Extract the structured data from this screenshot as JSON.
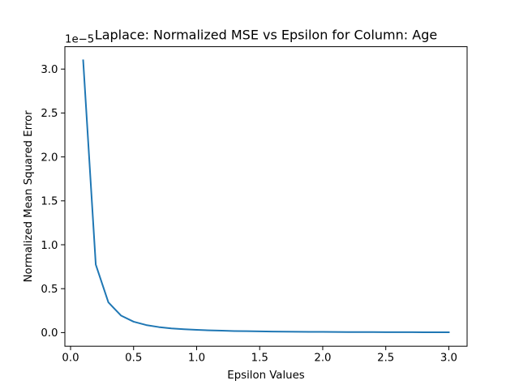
{
  "chart_data": {
    "type": "line",
    "title": "Laplace: Normalized MSE vs Epsilon for Column: Age",
    "xlabel": "Epsilon Values",
    "ylabel": "Normalized Mean Squared Error",
    "y_offset_label": "1e−5",
    "xlim": [
      -0.045,
      3.145
    ],
    "ylim": [
      -0.155,
      3.255
    ],
    "x_ticks": [
      0.0,
      0.5,
      1.0,
      1.5,
      2.0,
      2.5,
      3.0
    ],
    "x_tick_labels": [
      "0.0",
      "0.5",
      "1.0",
      "1.5",
      "2.0",
      "2.5",
      "3.0"
    ],
    "y_ticks": [
      0.0,
      0.5,
      1.0,
      1.5,
      2.0,
      2.5,
      3.0
    ],
    "y_tick_labels": [
      "0.0",
      "0.5",
      "1.0",
      "1.5",
      "2.0",
      "2.5",
      "3.0"
    ],
    "grid": false,
    "legend": false,
    "series": [
      {
        "color": "#1f77b4",
        "x": [
          0.1,
          0.2,
          0.3,
          0.4,
          0.5,
          0.6,
          0.7,
          0.8,
          0.9,
          1.0,
          1.1,
          1.2,
          1.3,
          1.4,
          1.5,
          1.6,
          1.7,
          1.8,
          1.9,
          2.0,
          2.1,
          2.2,
          2.3,
          2.4,
          2.5,
          2.6,
          2.7,
          2.8,
          2.9,
          3.0
        ],
        "y": [
          3.1,
          0.775,
          0.344,
          0.194,
          0.124,
          0.086,
          0.063,
          0.048,
          0.038,
          0.031,
          0.026,
          0.022,
          0.018,
          0.016,
          0.014,
          0.012,
          0.011,
          0.0096,
          0.0086,
          0.0078,
          0.007,
          0.0064,
          0.0059,
          0.0054,
          0.005,
          0.0046,
          0.0043,
          0.004,
          0.0037,
          0.0034
        ]
      }
    ]
  }
}
